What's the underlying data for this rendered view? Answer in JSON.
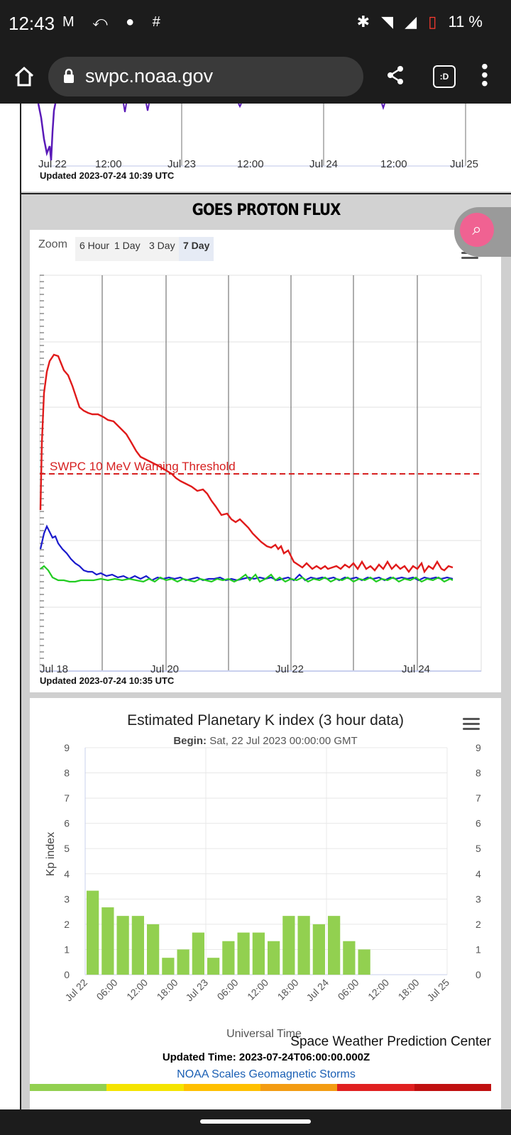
{
  "statusbar": {
    "time": "12:43",
    "notif_icons": "M ⤺ ● #",
    "battery": "11 %"
  },
  "browser": {
    "url": "swpc.noaa.gov"
  },
  "top_chart": {
    "tick_labels": [
      "Jul 22",
      "12:00",
      "Jul 23",
      "12:00",
      "Jul 24",
      "12:00",
      "Jul 25"
    ],
    "updated": "Updated 2023-07-24 10:39 UTC"
  },
  "proton": {
    "title": "GOES PROTON FLUX",
    "zoom_label": "Zoom",
    "zoom_options": [
      "6 Hour",
      "1 Day",
      "3 Day",
      "7 Day"
    ],
    "zoom_selected": "7 Day",
    "threshold_label": "SWPC 10 MeV Warning Threshold",
    "tick_labels": [
      "Jul 18",
      "Jul 20",
      "Jul 22",
      "Jul 24"
    ],
    "updated": "Updated 2023-07-24 10:35 UTC",
    "colors": {
      "high": "#e01b1b",
      "mid": "#1a1acc",
      "low": "#22cc22",
      "threshold": "#d62020"
    }
  },
  "chart_data": {
    "type": "bar",
    "title": "Estimated Planetary K index (3 hour data)",
    "subtitle_label": "Begin:",
    "subtitle_value": "Sat, 22 Jul 2023 00:00:00 GMT",
    "ylabel": "Kp index",
    "xlabel": "Universal Time",
    "ylim": [
      0,
      9
    ],
    "y_ticks": [
      "0",
      "1",
      "2",
      "3",
      "4",
      "5",
      "6",
      "7",
      "8",
      "9"
    ],
    "x_tick_labels": [
      "Jul 22",
      "06:00",
      "12:00",
      "18:00",
      "Jul 23",
      "06:00",
      "12:00",
      "18:00",
      "Jul 24",
      "06:00",
      "12:00",
      "18:00",
      "Jul 25"
    ],
    "values": [
      3.33,
      2.67,
      2.33,
      2.33,
      2.0,
      0.67,
      1.0,
      1.67,
      0.67,
      1.33,
      1.67,
      1.67,
      1.33,
      2.33,
      2.33,
      2.0,
      2.33,
      1.33,
      1.0
    ],
    "bar_color": "#92d050"
  },
  "kp_footer": {
    "credit": "Space Weather Prediction Center",
    "updated": "Updated Time: 2023-07-24T06:00:00.000Z",
    "link": "NOAA Scales Geomagnetic Storms",
    "scale_colors": [
      "#92d050",
      "#f5e400",
      "#ffc000",
      "#f39c12",
      "#e02020",
      "#c01010"
    ]
  }
}
